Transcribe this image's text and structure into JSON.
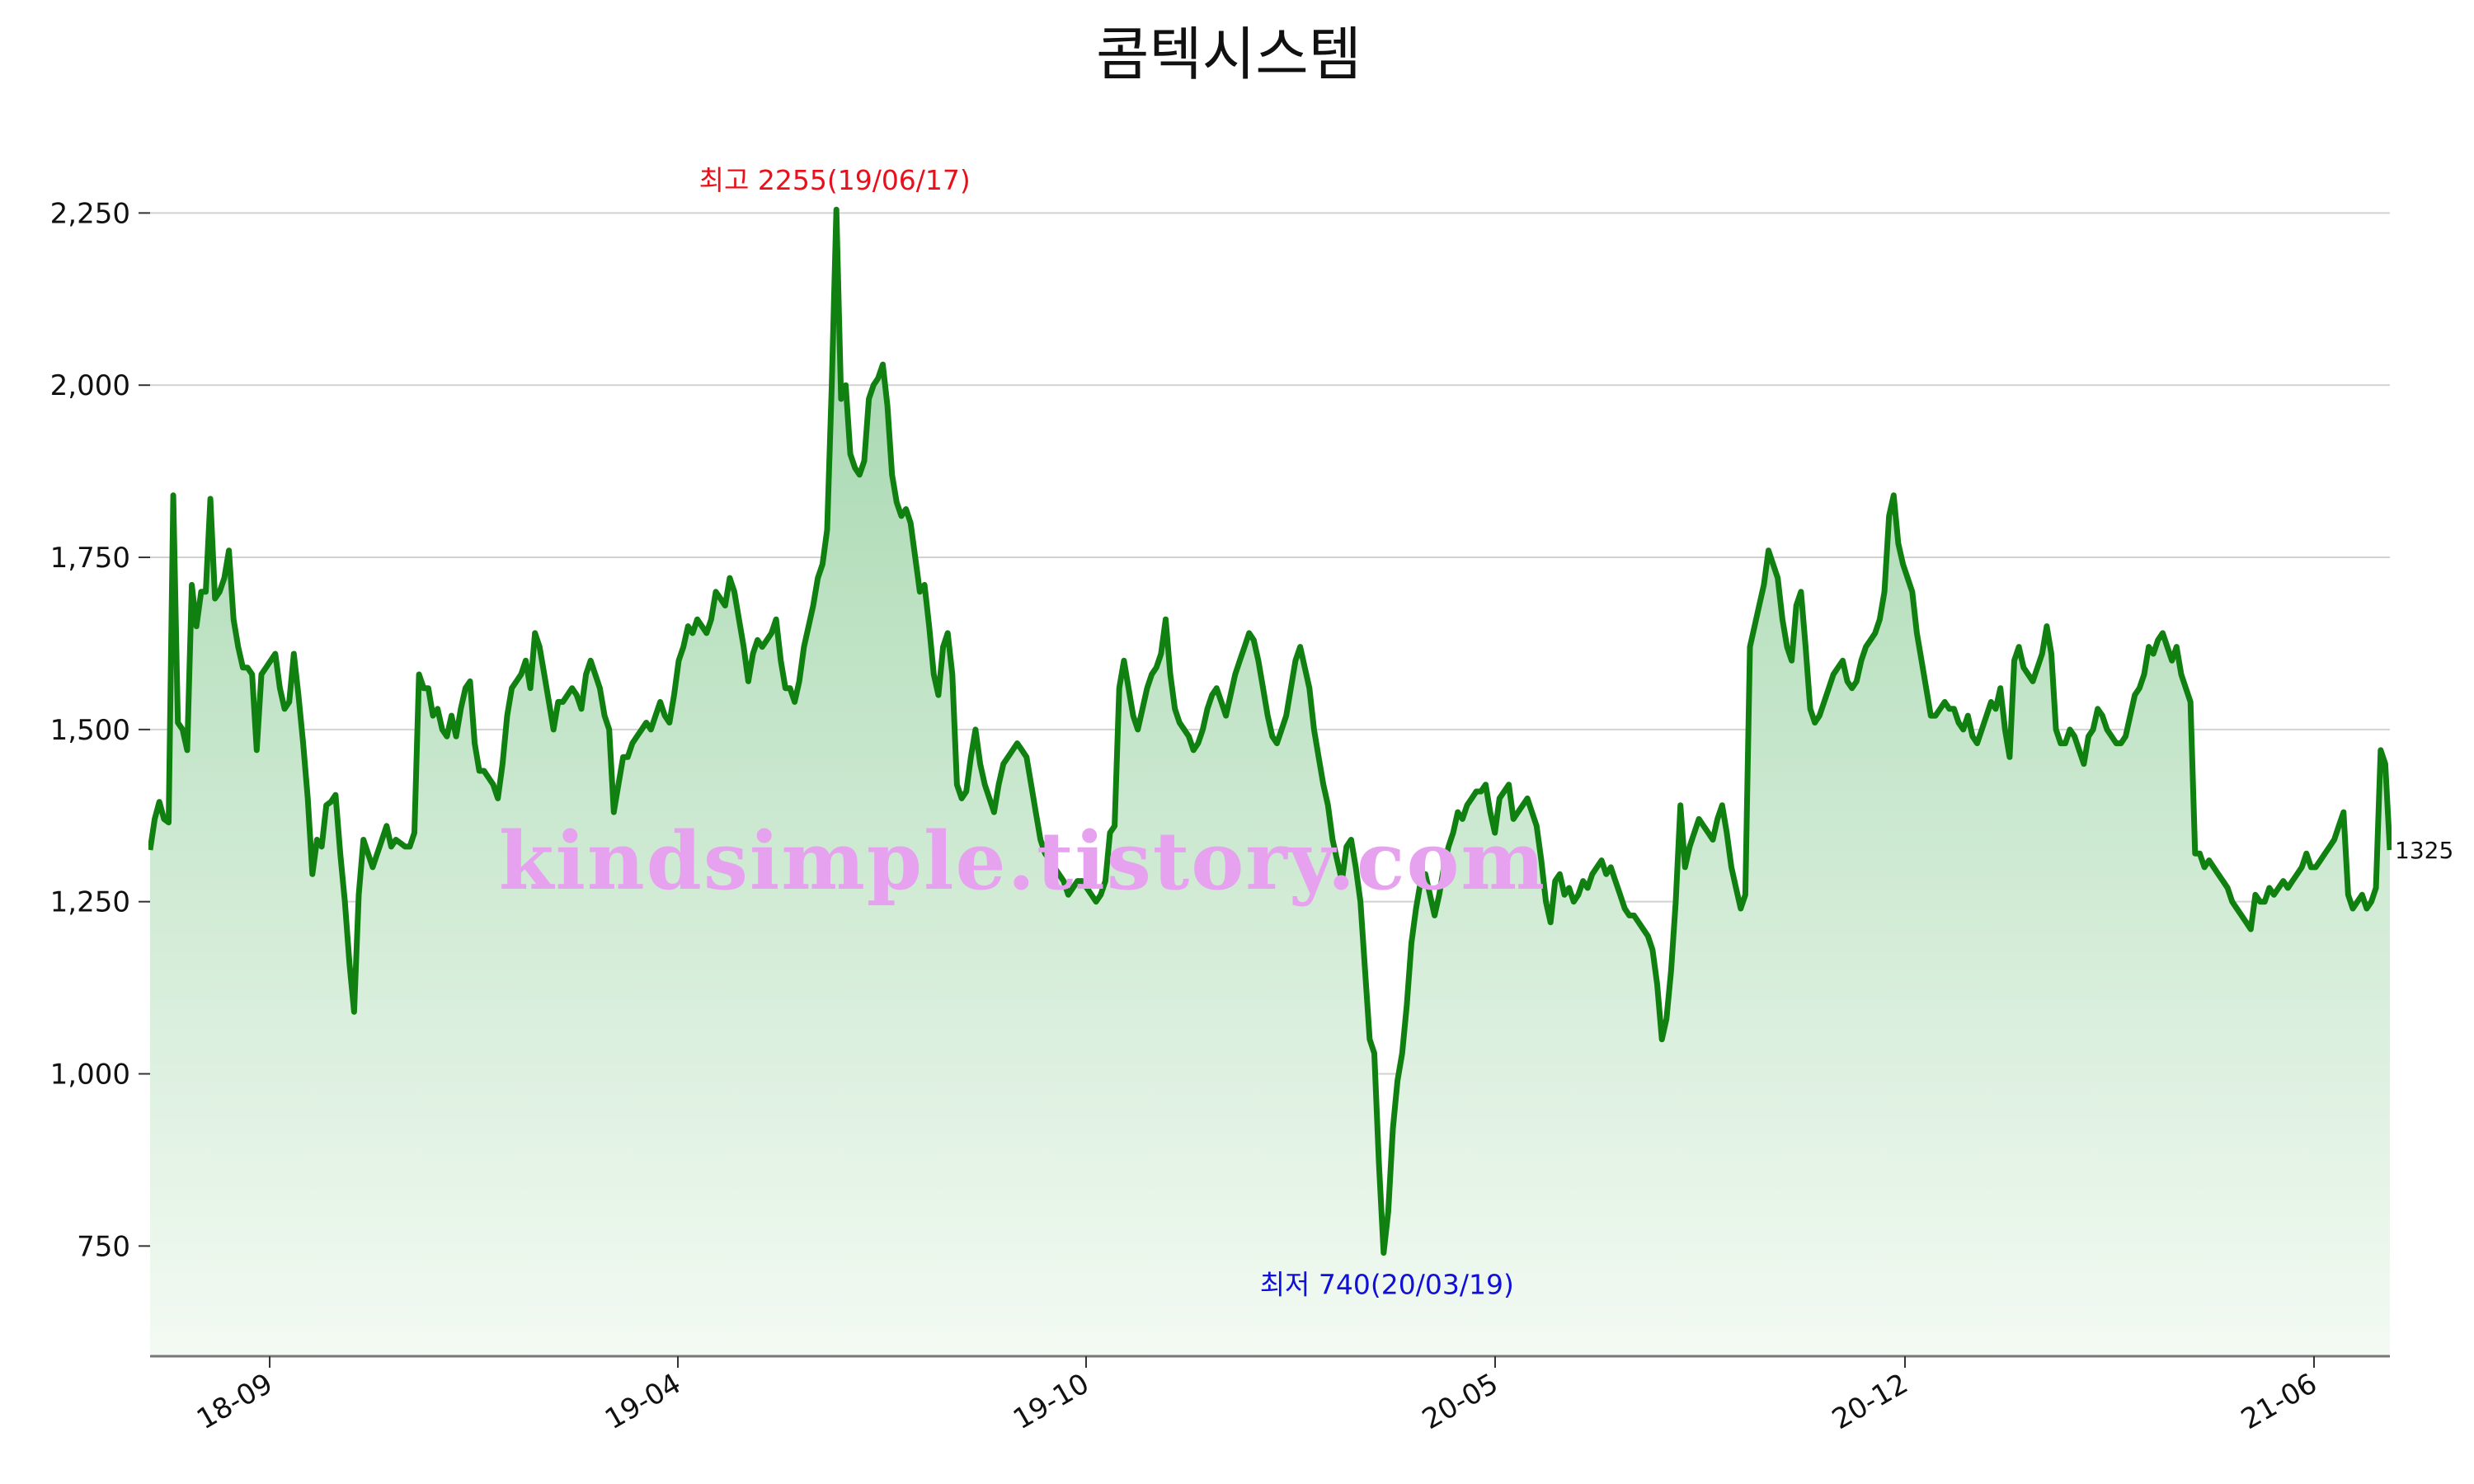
{
  "chart_data": {
    "type": "area",
    "title": "콤텍시스템",
    "xlabel": "",
    "ylabel": "",
    "x_ticks": [
      "18-09",
      "19-04",
      "19-10",
      "20-05",
      "20-12",
      "21-06"
    ],
    "y_ticks": [
      750,
      1000,
      1250,
      1500,
      1750,
      2000,
      2250
    ],
    "y_tick_labels": [
      "750",
      "1,000",
      "1,250",
      "1,500",
      "1,750",
      "2,000",
      "2,250"
    ],
    "ylim": [
      590,
      2260
    ],
    "grid": "horizontal",
    "series": [
      {
        "color": "#108010",
        "fill_top_color": "#9ed4a8",
        "fill_bottom_color": "#f3faf3",
        "values": [
          1325,
          1370,
          1395,
          1370,
          1365,
          1840,
          1510,
          1500,
          1470,
          1710,
          1650,
          1700,
          1700,
          1835,
          1690,
          1700,
          1720,
          1760,
          1660,
          1620,
          1590,
          1590,
          1580,
          1470,
          1580,
          1590,
          1600,
          1610,
          1560,
          1530,
          1540,
          1610,
          1550,
          1480,
          1400,
          1290,
          1340,
          1330,
          1390,
          1395,
          1405,
          1320,
          1250,
          1160,
          1090,
          1260,
          1340,
          1320,
          1300,
          1320,
          1340,
          1360,
          1330,
          1340,
          1335,
          1330,
          1330,
          1350,
          1580,
          1560,
          1560,
          1520,
          1530,
          1500,
          1490,
          1520,
          1490,
          1530,
          1560,
          1570,
          1480,
          1440,
          1440,
          1430,
          1420,
          1400,
          1450,
          1520,
          1560,
          1570,
          1580,
          1600,
          1560,
          1640,
          1620,
          1580,
          1540,
          1500,
          1540,
          1540,
          1550,
          1560,
          1550,
          1530,
          1580,
          1600,
          1580,
          1560,
          1520,
          1500,
          1380,
          1420,
          1460,
          1460,
          1480,
          1490,
          1500,
          1510,
          1500,
          1520,
          1540,
          1520,
          1510,
          1550,
          1600,
          1620,
          1650,
          1640,
          1660,
          1650,
          1640,
          1660,
          1700,
          1690,
          1680,
          1720,
          1700,
          1660,
          1620,
          1570,
          1610,
          1630,
          1620,
          1630,
          1640,
          1660,
          1600,
          1560,
          1560,
          1540,
          1570,
          1620,
          1650,
          1680,
          1720,
          1740,
          1790,
          2000,
          2255,
          1980,
          2000,
          1900,
          1880,
          1870,
          1890,
          1980,
          2000,
          2010,
          2030,
          1970,
          1870,
          1830,
          1810,
          1820,
          1800,
          1750,
          1700,
          1710,
          1650,
          1580,
          1550,
          1620,
          1640,
          1580,
          1420,
          1400,
          1410,
          1460,
          1500,
          1450,
          1420,
          1400,
          1380,
          1420,
          1450,
          1460,
          1470,
          1480,
          1470,
          1460,
          1420,
          1380,
          1340,
          1320,
          1310,
          1300,
          1290,
          1280,
          1260,
          1270,
          1280,
          1280,
          1270,
          1260,
          1250,
          1260,
          1280,
          1350,
          1360,
          1560,
          1600,
          1560,
          1520,
          1500,
          1530,
          1560,
          1580,
          1590,
          1610,
          1660,
          1580,
          1530,
          1510,
          1500,
          1490,
          1470,
          1480,
          1500,
          1530,
          1550,
          1560,
          1540,
          1520,
          1550,
          1580,
          1600,
          1620,
          1640,
          1630,
          1600,
          1560,
          1520,
          1490,
          1480,
          1500,
          1520,
          1560,
          1600,
          1620,
          1590,
          1560,
          1500,
          1460,
          1420,
          1390,
          1340,
          1310,
          1280,
          1330,
          1340,
          1300,
          1250,
          1150,
          1050,
          1030,
          870,
          740,
          800,
          920,
          990,
          1030,
          1100,
          1190,
          1240,
          1280,
          1290,
          1260,
          1230,
          1260,
          1300,
          1330,
          1350,
          1380,
          1370,
          1390,
          1400,
          1410,
          1410,
          1420,
          1380,
          1350,
          1400,
          1410,
          1420,
          1370,
          1380,
          1390,
          1400,
          1380,
          1360,
          1310,
          1250,
          1220,
          1280,
          1290,
          1260,
          1270,
          1250,
          1260,
          1280,
          1270,
          1290,
          1300,
          1310,
          1290,
          1300,
          1280,
          1260,
          1240,
          1230,
          1230,
          1220,
          1210,
          1200,
          1180,
          1130,
          1050,
          1080,
          1150,
          1250,
          1390,
          1300,
          1330,
          1350,
          1370,
          1360,
          1350,
          1340,
          1370,
          1390,
          1350,
          1300,
          1270,
          1240,
          1260,
          1620,
          1650,
          1680,
          1710,
          1760,
          1740,
          1720,
          1660,
          1620,
          1600,
          1680,
          1700,
          1620,
          1530,
          1510,
          1520,
          1540,
          1560,
          1580,
          1590,
          1600,
          1570,
          1560,
          1570,
          1600,
          1620,
          1630,
          1640,
          1660,
          1700,
          1810,
          1840,
          1770,
          1740,
          1720,
          1700,
          1640,
          1600,
          1560,
          1520,
          1520,
          1530,
          1540,
          1530,
          1530,
          1510,
          1500,
          1520,
          1490,
          1480,
          1500,
          1520,
          1540,
          1530,
          1560,
          1500,
          1460,
          1600,
          1620,
          1590,
          1580,
          1570,
          1590,
          1610,
          1650,
          1610,
          1500,
          1480,
          1480,
          1500,
          1490,
          1470,
          1450,
          1490,
          1500,
          1530,
          1520,
          1500,
          1490,
          1480,
          1480,
          1490,
          1520,
          1550,
          1560,
          1580,
          1620,
          1610,
          1630,
          1640,
          1620,
          1600,
          1620,
          1580,
          1560,
          1540,
          1320,
          1320,
          1300,
          1310,
          1300,
          1290,
          1280,
          1270,
          1250,
          1240,
          1230,
          1220,
          1210,
          1260,
          1250,
          1250,
          1270,
          1260,
          1270,
          1280,
          1270,
          1280,
          1290,
          1300,
          1320,
          1300,
          1300,
          1310,
          1320,
          1330,
          1340,
          1360,
          1380,
          1260,
          1240,
          1250,
          1260,
          1240,
          1250,
          1270,
          1470,
          1450,
          1325
        ]
      }
    ],
    "annotations": {
      "max_label": "최고 2255(19/06/17)",
      "max_value": 2255,
      "max_color": "#e8101a",
      "min_label": "최저 740(20/03/19)",
      "min_value": 740,
      "min_color": "#1010d8",
      "last_label": "1325",
      "last_value": 1325
    },
    "watermark": "kindsimple.tistory.com",
    "watermark_color": "#e6a2ef"
  }
}
